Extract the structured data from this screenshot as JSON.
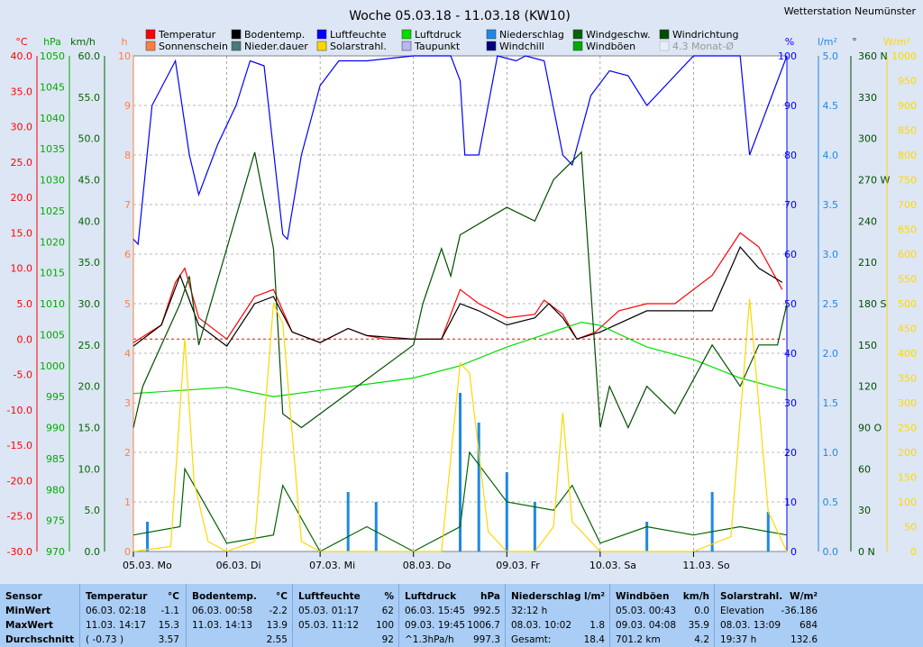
{
  "title": "Woche 05.03.18 - 11.03.18 (KW10)",
  "station": "Wetterstation Neumünster",
  "legend": [
    {
      "label": "Temperatur",
      "color": "#ff0000"
    },
    {
      "label": "Bodentemp.",
      "color": "#000000"
    },
    {
      "label": "Luftfeuchte",
      "color": "#0000ff"
    },
    {
      "label": "Luftdruck",
      "color": "#00dd00"
    },
    {
      "label": "Niederschlag",
      "color": "#1e88e5"
    },
    {
      "label": "Windgeschw.",
      "color": "#006400"
    },
    {
      "label": "Windrichtung",
      "color": "#004d00"
    },
    {
      "label": "Sonnenschein",
      "color": "#ff7f3f"
    },
    {
      "label": "Nieder.dauer",
      "color": "#4a7a7a"
    },
    {
      "label": "Solarstrahl.",
      "color": "#ffd700"
    },
    {
      "label": "Taupunkt",
      "color": "#b8b8f0"
    },
    {
      "label": "Windchill",
      "color": "#000080"
    },
    {
      "label": "Windböen",
      "color": "#00aa00"
    },
    {
      "label": "4.3 Monat-Ø",
      "color": "#bbbbbb"
    }
  ],
  "axes": {
    "celsius": {
      "unit": "°C",
      "color": "#ff0000",
      "ticks": [
        "40.0",
        "35.0",
        "30.0",
        "25.0",
        "20.0",
        "15.0",
        "10.0",
        "5.0",
        "0.0",
        "-5.0",
        "-10.0",
        "-15.0",
        "-20.0",
        "-25.0",
        "-30.0"
      ]
    },
    "hpa": {
      "unit": "hPa",
      "color": "#00aa00",
      "ticks": [
        "1050",
        "1045",
        "1040",
        "1035",
        "1030",
        "1025",
        "1020",
        "1015",
        "1010",
        "1005",
        "1000",
        "995",
        "990",
        "985",
        "980",
        "975",
        "970"
      ]
    },
    "kmh": {
      "unit": "km/h",
      "color": "#006400",
      "ticks": [
        "60.0",
        "55.0",
        "50.0",
        "45.0",
        "40.0",
        "35.0",
        "30.0",
        "25.0",
        "20.0",
        "15.0",
        "10.0",
        "5.0",
        "0.0"
      ]
    },
    "hours": {
      "unit": "h",
      "color": "#ff7f3f",
      "ticks": [
        "10",
        "9",
        "8",
        "7",
        "6",
        "5",
        "4",
        "3",
        "2",
        "1",
        "0"
      ]
    },
    "percent": {
      "unit": "%",
      "color": "#0000ff",
      "ticks": [
        "100",
        "90",
        "80",
        "70",
        "60",
        "50",
        "40",
        "30",
        "20",
        "10",
        "0"
      ]
    },
    "lm2": {
      "unit": "l/m²",
      "color": "#1e88e5",
      "ticks": [
        "5.0",
        "4.5",
        "4.0",
        "3.5",
        "3.0",
        "2.5",
        "2.0",
        "1.5",
        "1.0",
        "0.5",
        "0.0"
      ]
    },
    "deg": {
      "unit": "°",
      "color": "#004d00",
      "ticks": [
        "360 N",
        "330",
        "300",
        "270 W",
        "240",
        "210",
        "180 S",
        "150",
        "120",
        "90 O",
        "60",
        "30",
        "0  N"
      ]
    },
    "wm2": {
      "unit": "W/m²",
      "color": "#ffd700",
      "ticks": [
        "1000",
        "950",
        "900",
        "850",
        "800",
        "750",
        "700",
        "650",
        "600",
        "550",
        "500",
        "450",
        "400",
        "350",
        "300",
        "250",
        "200",
        "150",
        "100",
        "50",
        "0"
      ]
    }
  },
  "days": [
    "05.03.  Mo",
    "06.03.  Di",
    "07.03.  Mi",
    "08.03.  Do",
    "09.03.  Fr",
    "10.03.  Sa",
    "11.03.  So"
  ],
  "chart_data": {
    "type": "line",
    "title": "Woche 05.03.18 - 11.03.18 (KW10)",
    "x_unit": "day",
    "xlim": [
      0,
      7
    ],
    "series": [
      {
        "name": "Temperatur",
        "axis": "celsius",
        "color": "#ff0000",
        "x": [
          0,
          0.3,
          0.45,
          0.55,
          0.7,
          1.0,
          1.3,
          1.5,
          1.7,
          2.0,
          2.3,
          2.5,
          2.7,
          3.0,
          3.3,
          3.5,
          3.7,
          4.0,
          4.3,
          4.4,
          4.6,
          4.75,
          4.95,
          5.2,
          5.5,
          5.8,
          6.2,
          6.5,
          6.7,
          6.95
        ],
        "values": [
          -0.5,
          2,
          8,
          10,
          3,
          0,
          6,
          7,
          1,
          -0.5,
          1.5,
          0.5,
          0,
          0,
          0,
          7,
          5,
          3,
          3.5,
          5.5,
          3.5,
          0,
          1,
          4,
          5,
          5,
          9,
          15,
          13,
          7
        ]
      },
      {
        "name": "Bodentemp.",
        "axis": "celsius",
        "color": "#000000",
        "x": [
          0,
          0.3,
          0.5,
          0.7,
          1.0,
          1.3,
          1.5,
          1.7,
          2.0,
          2.3,
          2.5,
          3.0,
          3.3,
          3.5,
          3.7,
          4.0,
          4.3,
          4.45,
          4.6,
          4.75,
          5.0,
          5.5,
          5.8,
          6.2,
          6.5,
          6.7,
          6.95
        ],
        "values": [
          -1,
          2,
          9,
          2,
          -1,
          5,
          6,
          1,
          -0.5,
          1.5,
          0.5,
          0,
          0,
          5,
          4,
          2,
          3,
          5,
          3,
          0,
          1,
          4,
          4,
          4,
          13,
          10,
          8
        ]
      },
      {
        "name": "Luftfeuchte",
        "axis": "percent",
        "color": "#0000ff",
        "x": [
          0,
          0.05,
          0.2,
          0.45,
          0.6,
          0.7,
          0.9,
          1.1,
          1.25,
          1.4,
          1.6,
          1.65,
          1.8,
          2.0,
          2.2,
          2.5,
          3.0,
          3.3,
          3.4,
          3.5,
          3.55,
          3.7,
          3.9,
          4.1,
          4.2,
          4.4,
          4.6,
          4.7,
          4.9,
          5.1,
          5.3,
          5.5,
          6.0,
          6.5,
          6.6,
          6.8,
          7.0
        ],
        "values": [
          63,
          62,
          90,
          99,
          80,
          72,
          82,
          90,
          99,
          98,
          64,
          63,
          80,
          94,
          99,
          99,
          100,
          100,
          100,
          95,
          80,
          80,
          100,
          99,
          100,
          99,
          80,
          78,
          92,
          97,
          96,
          90,
          100,
          100,
          80,
          90,
          100
        ]
      },
      {
        "name": "Luftdruck",
        "axis": "hpa",
        "color": "#00dd00",
        "x": [
          0,
          0.5,
          1.0,
          1.5,
          2.0,
          2.5,
          3.0,
          3.5,
          4.0,
          4.3,
          4.6,
          4.8,
          5.0,
          5.5,
          6.0,
          6.5,
          7.0
        ],
        "values": [
          995.5,
          996,
          996.5,
          995,
          996,
          997,
          998,
          1000,
          1003,
          1004.5,
          1006,
          1007,
          1006.5,
          1003,
          1001,
          998,
          996
        ]
      },
      {
        "name": "Windgeschw.",
        "axis": "kmh",
        "color": "#006400",
        "x": [
          0,
          0.5,
          0.55,
          1.0,
          1.5,
          1.6,
          2.0,
          2.5,
          3.0,
          3.5,
          3.6,
          4.0,
          4.5,
          4.7,
          5.0,
          5.5,
          6.0,
          6.5,
          7.0
        ],
        "values": [
          2,
          3,
          10,
          1,
          2,
          8,
          0,
          3,
          0,
          3,
          12,
          6,
          5,
          8,
          1,
          3,
          2,
          3,
          2
        ]
      },
      {
        "name": "Windrichtung",
        "axis": "deg",
        "color": "#004d00",
        "x": [
          0,
          0.1,
          0.3,
          0.5,
          0.6,
          0.7,
          1.3,
          1.5,
          1.6,
          1.8,
          3.0,
          3.1,
          3.3,
          3.4,
          3.5,
          4.0,
          4.3,
          4.5,
          4.8,
          5.0,
          5.1,
          5.3,
          5.5,
          5.8,
          6.2,
          6.5,
          6.7,
          6.9,
          7.0
        ],
        "values": [
          90,
          120,
          150,
          180,
          200,
          150,
          290,
          220,
          100,
          90,
          150,
          180,
          220,
          200,
          230,
          250,
          240,
          270,
          290,
          90,
          120,
          90,
          120,
          100,
          150,
          120,
          150,
          150,
          180
        ]
      },
      {
        "name": "Niederschlag",
        "axis": "lm2",
        "color": "#1e88e5",
        "x": [
          0.15,
          2.3,
          2.6,
          3.5,
          3.7,
          4.0,
          4.3,
          5.5,
          6.2,
          6.8
        ],
        "values": [
          0.3,
          0.6,
          0.5,
          1.6,
          1.3,
          0.8,
          0.5,
          0.3,
          0.6,
          0.4
        ]
      },
      {
        "name": "Solarstrahl.",
        "axis": "wm2",
        "color": "#ffd700",
        "x": [
          0,
          0.4,
          0.55,
          0.65,
          0.8,
          1.0,
          1.3,
          1.5,
          1.6,
          1.8,
          2.0,
          2.5,
          3.0,
          3.3,
          3.5,
          3.6,
          3.8,
          4.0,
          4.3,
          4.5,
          4.6,
          4.7,
          5.0,
          5.5,
          6.0,
          6.4,
          6.6,
          6.8,
          7.0
        ],
        "values": [
          0,
          10,
          430,
          140,
          20,
          0,
          20,
          500,
          460,
          20,
          0,
          0,
          0,
          0,
          380,
          360,
          40,
          0,
          0,
          50,
          280,
          60,
          0,
          0,
          0,
          30,
          510,
          80,
          0
        ]
      }
    ]
  },
  "table": [
    {
      "h": "Sensor",
      "u": "",
      "r1": "MinWert",
      "r2": "MaxWert",
      "r3": "Durchschnitt",
      "v1": "",
      "v2": "",
      "v3": ""
    },
    {
      "h": "Temperatur",
      "u": "°C",
      "r1": "06.03.  02:18",
      "r2": "11.03.  14:17",
      "r3": "( -0.73 )",
      "v1": "-1.1",
      "v2": "15.3",
      "v3": "3.57"
    },
    {
      "h": "Bodentemp.",
      "u": "°C",
      "r1": "06.03.  00:58",
      "r2": "11.03.  14:13",
      "r3": "",
      "v1": "-2.2",
      "v2": "13.9",
      "v3": "2.55"
    },
    {
      "h": "Luftfeuchte",
      "u": "%",
      "r1": "05.03.  01:17",
      "r2": "05.03.  11:12",
      "r3": "",
      "v1": "62",
      "v2": "100",
      "v3": "92"
    },
    {
      "h": "Luftdruck",
      "u": "hPa",
      "r1": "06.03.  15:45",
      "r2": "09.03.  19:45",
      "r3": "^1.3hPa/h",
      "v1": "992.5",
      "v2": "1006.7",
      "v3": "997.3"
    },
    {
      "h": "Niederschlag",
      "u": "l/m²",
      "r1": "32:12 h",
      "r2": "08.03.  10:02",
      "r3": "Gesamt:",
      "v1": "",
      "v2": "1.8",
      "v3": "18.4"
    },
    {
      "h": "Windböen",
      "u": "km/h",
      "r1": "05.03.  00:43",
      "r2": "09.03.  04:08",
      "r3": "701.2 km",
      "v1": "0.0",
      "v2": "35.9",
      "v3": "4.2"
    },
    {
      "h": "Solarstrahl.",
      "u": "W/m²",
      "r1": "Elevation",
      "r2": "08.03.  13:09",
      "r3": "19:37 h",
      "v1": "-36.186",
      "v2": "684",
      "v3": "132.6"
    }
  ]
}
